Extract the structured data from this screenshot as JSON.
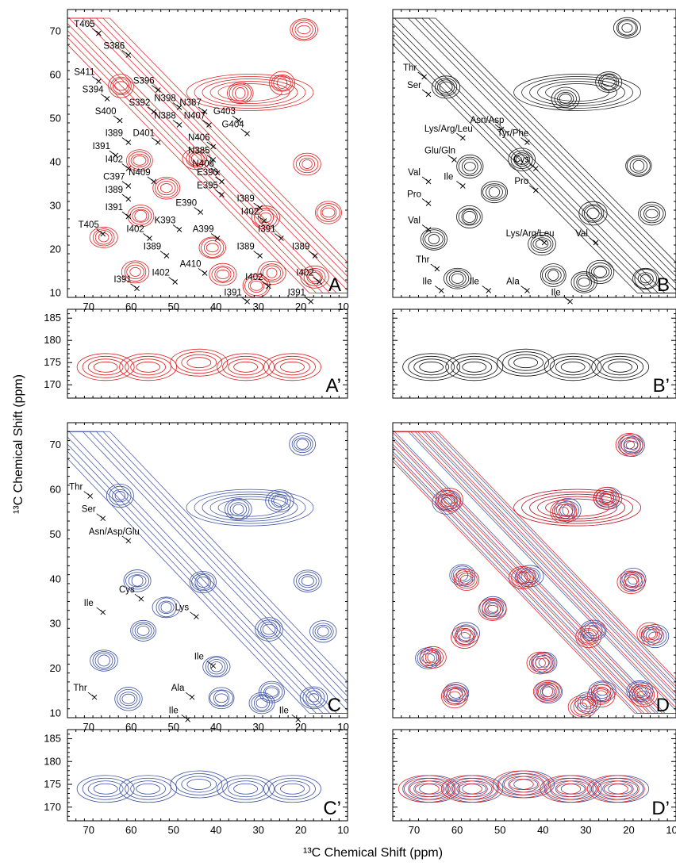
{
  "figure": {
    "xlabel": "¹³C Chemical Shift (ppm)",
    "ylabel": "¹³C Chemical Shift (ppm)"
  },
  "colors": {
    "red": "#e01b1b",
    "black": "#111111",
    "blue": "#3a4fa3"
  },
  "chart_data": [
    {
      "type": "heatmap",
      "panel": "A",
      "series": [
        {
          "color": "#e01b1b"
        }
      ],
      "xlim": [
        75,
        9
      ],
      "ylim": [
        75,
        9
      ],
      "x_ticks": [
        70,
        60,
        50,
        40,
        30,
        20,
        10
      ],
      "y_ticks": [
        10,
        20,
        30,
        40,
        50,
        60,
        70
      ],
      "diagonal": true,
      "annotations": [
        {
          "text": "I391",
          "x": 62,
          "y": 12.5
        },
        {
          "text": "I402",
          "x": 53,
          "y": 14
        },
        {
          "text": "A410",
          "x": 46,
          "y": 16
        },
        {
          "text": "I391",
          "x": 36,
          "y": 9.5
        },
        {
          "text": "I402",
          "x": 31,
          "y": 13
        },
        {
          "text": "I391",
          "x": 21,
          "y": 9.5
        },
        {
          "text": "I402",
          "x": 19,
          "y": 14
        },
        {
          "text": "I389",
          "x": 55,
          "y": 20
        },
        {
          "text": "I389",
          "x": 33,
          "y": 20
        },
        {
          "text": "I389",
          "x": 20,
          "y": 20
        },
        {
          "text": "A399",
          "x": 43,
          "y": 24
        },
        {
          "text": "T405",
          "x": 70,
          "y": 25
        },
        {
          "text": "I402",
          "x": 59,
          "y": 24
        },
        {
          "text": "K393",
          "x": 52,
          "y": 26
        },
        {
          "text": "I391",
          "x": 28,
          "y": 24
        },
        {
          "text": "I391",
          "x": 64,
          "y": 29
        },
        {
          "text": "E390",
          "x": 47,
          "y": 30
        },
        {
          "text": "I402",
          "x": 32,
          "y": 28
        },
        {
          "text": "I389",
          "x": 64,
          "y": 33
        },
        {
          "text": "I389",
          "x": 33,
          "y": 31
        },
        {
          "text": "C397",
          "x": 64,
          "y": 36
        },
        {
          "text": "E395",
          "x": 42,
          "y": 34
        },
        {
          "text": "N409",
          "x": 58,
          "y": 37
        },
        {
          "text": "E390",
          "x": 42,
          "y": 37
        },
        {
          "text": "I402",
          "x": 64,
          "y": 40
        },
        {
          "text": "N408",
          "x": 43,
          "y": 39
        },
        {
          "text": "I391",
          "x": 67,
          "y": 43
        },
        {
          "text": "N385",
          "x": 44,
          "y": 42
        },
        {
          "text": "I389",
          "x": 64,
          "y": 46
        },
        {
          "text": "D401",
          "x": 57,
          "y": 46
        },
        {
          "text": "N406",
          "x": 44,
          "y": 45
        },
        {
          "text": "G404",
          "x": 36,
          "y": 48
        },
        {
          "text": "N388",
          "x": 52,
          "y": 50
        },
        {
          "text": "N407",
          "x": 45,
          "y": 50
        },
        {
          "text": "G403",
          "x": 38,
          "y": 51
        },
        {
          "text": "S400",
          "x": 66,
          "y": 51
        },
        {
          "text": "S392",
          "x": 58,
          "y": 53
        },
        {
          "text": "N398",
          "x": 52,
          "y": 54
        },
        {
          "text": "N387",
          "x": 46,
          "y": 53
        },
        {
          "text": "S394",
          "x": 69,
          "y": 56
        },
        {
          "text": "S396",
          "x": 57,
          "y": 58
        },
        {
          "text": "S411",
          "x": 71,
          "y": 60
        },
        {
          "text": "S386",
          "x": 64,
          "y": 66
        },
        {
          "text": "T405",
          "x": 71,
          "y": 71
        }
      ]
    },
    {
      "type": "heatmap",
      "panel": "B",
      "series": [
        {
          "color": "#111111"
        }
      ],
      "xlim": [
        75,
        9
      ],
      "ylim": [
        75,
        9
      ],
      "diagonal": true,
      "annotations": [
        {
          "text": "Ile",
          "x": 67,
          "y": 12
        },
        {
          "text": "Ile",
          "x": 56,
          "y": 12
        },
        {
          "text": "Ala",
          "x": 47,
          "y": 12
        },
        {
          "text": "Ile",
          "x": 37,
          "y": 9.5
        },
        {
          "text": "Thr",
          "x": 68,
          "y": 17
        },
        {
          "text": "Lys/Arg/Leu",
          "x": 43,
          "y": 23
        },
        {
          "text": "Val",
          "x": 31,
          "y": 23
        },
        {
          "text": "Val",
          "x": 70,
          "y": 26
        },
        {
          "text": "Pro",
          "x": 70,
          "y": 32
        },
        {
          "text": "Val",
          "x": 70,
          "y": 37
        },
        {
          "text": "Ile",
          "x": 62,
          "y": 36
        },
        {
          "text": "Pro",
          "x": 45,
          "y": 35
        },
        {
          "text": "Cys",
          "x": 45,
          "y": 40
        },
        {
          "text": "Glu/Gln",
          "x": 64,
          "y": 42
        },
        {
          "text": "Lys/Arg/Leu",
          "x": 62,
          "y": 47
        },
        {
          "text": "Tyr/Phe",
          "x": 47,
          "y": 46
        },
        {
          "text": "Asn/Asp",
          "x": 53,
          "y": 49
        },
        {
          "text": "Ser",
          "x": 70,
          "y": 57
        },
        {
          "text": "Thr",
          "x": 71,
          "y": 61
        }
      ]
    },
    {
      "type": "heatmap",
      "panel": "A’",
      "series": [
        {
          "color": "#e01b1b"
        }
      ],
      "xlim": [
        75,
        9
      ],
      "ylim": [
        187,
        167
      ],
      "y_ticks": [
        170,
        175,
        180,
        185
      ]
    },
    {
      "type": "heatmap",
      "panel": "B’",
      "series": [
        {
          "color": "#111111"
        }
      ],
      "xlim": [
        75,
        9
      ],
      "ylim": [
        187,
        167
      ]
    },
    {
      "type": "heatmap",
      "panel": "C",
      "series": [
        {
          "color": "#3a4fa3"
        }
      ],
      "xlim": [
        75,
        9
      ],
      "ylim": [
        75,
        9
      ],
      "x_ticks": [
        70,
        60,
        50,
        40,
        30,
        20,
        10
      ],
      "y_ticks": [
        10,
        20,
        30,
        40,
        50,
        60,
        70
      ],
      "diagonal": true,
      "annotations": [
        {
          "text": "Ile",
          "x": 50,
          "y": 10
        },
        {
          "text": "Ile",
          "x": 24,
          "y": 10
        },
        {
          "text": "Thr",
          "x": 72,
          "y": 15
        },
        {
          "text": "Ala",
          "x": 49,
          "y": 15
        },
        {
          "text": "Ile",
          "x": 44,
          "y": 22
        },
        {
          "text": "Ile",
          "x": 70,
          "y": 34
        },
        {
          "text": "Cys",
          "x": 61,
          "y": 37
        },
        {
          "text": "Lys",
          "x": 48,
          "y": 33
        },
        {
          "text": "Asn/Asp/Glu",
          "x": 64,
          "y": 50
        },
        {
          "text": "Ser",
          "x": 70,
          "y": 55
        },
        {
          "text": "Thr",
          "x": 73,
          "y": 60
        }
      ]
    },
    {
      "type": "heatmap",
      "panel": "D",
      "series": [
        {
          "color": "#3a4fa3"
        },
        {
          "color": "#e01b1b"
        }
      ],
      "xlim": [
        75,
        9
      ],
      "ylim": [
        75,
        9
      ],
      "diagonal": true
    },
    {
      "type": "heatmap",
      "panel": "C’",
      "series": [
        {
          "color": "#3a4fa3"
        }
      ],
      "xlim": [
        75,
        9
      ],
      "ylim": [
        187,
        167
      ],
      "x_ticks": [
        70,
        60,
        50,
        40,
        30,
        20,
        10
      ],
      "y_ticks": [
        170,
        175,
        180,
        185
      ]
    },
    {
      "type": "heatmap",
      "panel": "D’",
      "series": [
        {
          "color": "#3a4fa3"
        },
        {
          "color": "#e01b1b"
        }
      ],
      "xlim": [
        75,
        9
      ],
      "ylim": [
        187,
        167
      ],
      "x_ticks": [
        70,
        60,
        50,
        40,
        30,
        20,
        10
      ]
    }
  ]
}
